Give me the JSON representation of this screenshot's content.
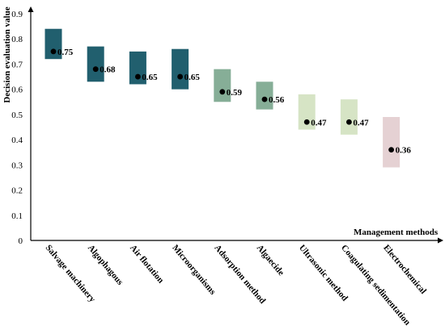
{
  "chart_data": {
    "type": "bar",
    "xlabel": "Management methods",
    "ylabel": "Decision evaluation value",
    "ylim": [
      0,
      0.9
    ],
    "yticks": [
      "0",
      "0.1",
      "0.2",
      "0.3",
      "0.4",
      "0.5",
      "0.6",
      "0.7",
      "0.8",
      "0.9"
    ],
    "grid": false,
    "legend": "none",
    "categories": [
      "Salvage machinery",
      "Algophagous",
      "Air flotation",
      "Microorganisms",
      "Adsorption method",
      "Algaecide",
      "Ultrasonic method",
      "Coagulating sedimentation",
      "Electrochemical"
    ],
    "points": [
      {
        "value": 0.75,
        "label": "0.75",
        "low": 0.72,
        "high": 0.84,
        "color": "#215f6e"
      },
      {
        "value": 0.68,
        "label": "0.68",
        "low": 0.63,
        "high": 0.77,
        "color": "#215f6e"
      },
      {
        "value": 0.65,
        "label": "0.65",
        "low": 0.62,
        "high": 0.75,
        "color": "#215f6e"
      },
      {
        "value": 0.65,
        "label": "0.65",
        "low": 0.6,
        "high": 0.76,
        "color": "#215f6e"
      },
      {
        "value": 0.59,
        "label": "0.59",
        "low": 0.55,
        "high": 0.68,
        "color": "#86ae97"
      },
      {
        "value": 0.56,
        "label": "0.56",
        "low": 0.52,
        "high": 0.63,
        "color": "#86ae97"
      },
      {
        "value": 0.47,
        "label": "0.47",
        "low": 0.44,
        "high": 0.58,
        "color": "#d6e4c5"
      },
      {
        "value": 0.47,
        "label": "0.47",
        "low": 0.42,
        "high": 0.56,
        "color": "#d6e4c5"
      },
      {
        "value": 0.36,
        "label": "0.36",
        "low": 0.29,
        "high": 0.49,
        "color": "#e5d1d3"
      }
    ],
    "marker_color": "#000000",
    "axis_color": "#000000"
  }
}
